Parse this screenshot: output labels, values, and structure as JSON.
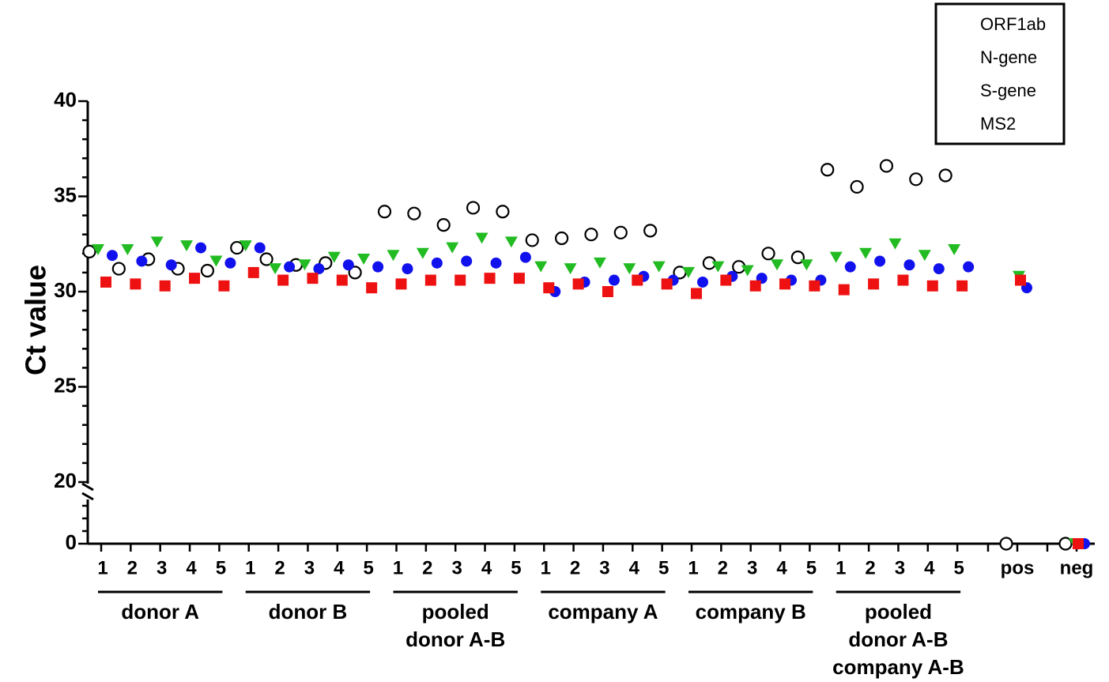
{
  "chart_data": {
    "type": "scatter",
    "ylabel": "Ct value",
    "y_axis": {
      "upper_segment": {
        "range": [
          20,
          40
        ],
        "ticks": [
          20,
          25,
          30,
          35,
          40
        ]
      },
      "lower_segment": {
        "range": [
          0,
          0
        ],
        "ticks": [
          0
        ]
      },
      "axis_break": true
    },
    "tick_labels": [
      "1",
      "2",
      "3",
      "4",
      "5",
      "1",
      "2",
      "3",
      "4",
      "5",
      "1",
      "2",
      "3",
      "4",
      "5",
      "1",
      "2",
      "3",
      "4",
      "5",
      "1",
      "2",
      "3",
      "4",
      "5",
      "1",
      "2",
      "3",
      "4",
      "5",
      "pos",
      "neg"
    ],
    "groups": [
      {
        "label_lines": [
          "donor A"
        ]
      },
      {
        "label_lines": [
          "donor B"
        ]
      },
      {
        "label_lines": [
          "pooled",
          "donor  A-B"
        ]
      },
      {
        "label_lines": [
          "company A"
        ]
      },
      {
        "label_lines": [
          "company  B"
        ]
      },
      {
        "label_lines": [
          "pooled",
          "donor  A-B",
          "company A-B"
        ]
      }
    ],
    "legend_position": "top-right",
    "series": [
      {
        "name": "ORF1ab",
        "color": "#22bb22",
        "marker": "triangle-down",
        "values": [
          32.2,
          32.2,
          32.6,
          32.4,
          31.6,
          32.4,
          31.2,
          31.4,
          31.8,
          31.7,
          31.9,
          32.0,
          32.3,
          32.8,
          32.6,
          31.3,
          31.2,
          31.5,
          31.2,
          31.3,
          31.0,
          31.3,
          31.1,
          31.4,
          31.4,
          31.8,
          32.0,
          32.5,
          31.9,
          32.2,
          30.8,
          0
        ]
      },
      {
        "name": "N-gene",
        "color": "#ee1111",
        "marker": "square",
        "values": [
          30.5,
          30.4,
          30.3,
          30.7,
          30.3,
          31.0,
          30.6,
          30.7,
          30.6,
          30.2,
          30.4,
          30.6,
          30.6,
          30.7,
          30.7,
          30.2,
          30.4,
          30.0,
          30.6,
          30.4,
          29.9,
          30.6,
          30.3,
          30.4,
          30.3,
          30.1,
          30.4,
          30.6,
          30.3,
          30.3,
          30.6,
          0
        ]
      },
      {
        "name": "S-gene",
        "color": "#1111ee",
        "marker": "circle",
        "values": [
          31.9,
          31.6,
          31.4,
          32.3,
          31.5,
          32.3,
          31.3,
          31.2,
          31.4,
          31.3,
          31.2,
          31.5,
          31.6,
          31.5,
          31.8,
          30.0,
          30.5,
          30.6,
          30.8,
          30.6,
          30.5,
          30.8,
          30.7,
          30.6,
          30.6,
          31.3,
          31.6,
          31.4,
          31.2,
          31.3,
          30.2,
          0
        ]
      },
      {
        "name": "MS2",
        "color": "#000000",
        "marker": "circle-open",
        "values": [
          32.1,
          31.2,
          31.7,
          31.2,
          31.1,
          32.3,
          31.7,
          31.4,
          31.5,
          31.0,
          34.2,
          34.1,
          33.5,
          34.4,
          34.2,
          32.7,
          32.8,
          33.0,
          33.1,
          33.2,
          31.0,
          31.5,
          31.3,
          32.0,
          31.8,
          36.4,
          35.5,
          36.6,
          35.9,
          36.1,
          0,
          0
        ]
      }
    ]
  }
}
